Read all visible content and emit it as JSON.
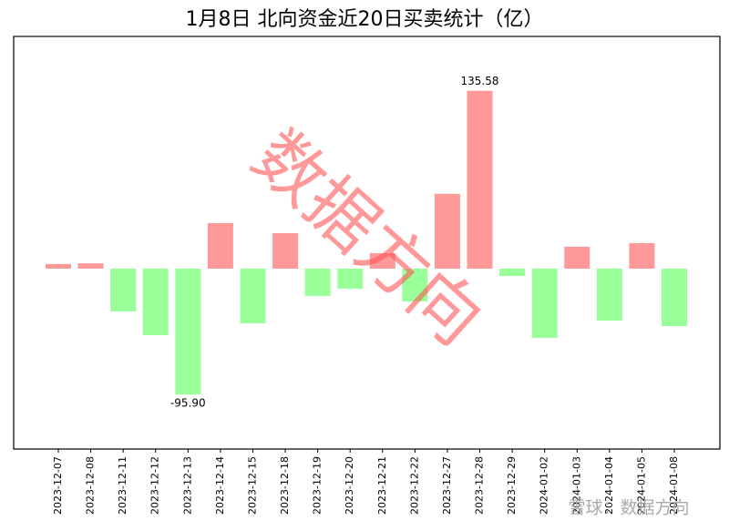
{
  "chart_data": {
    "type": "bar",
    "title": "1月8日 北向资金近20日买卖统计（亿）",
    "categories": [
      "2023-12-07",
      "2023-12-08",
      "2023-12-11",
      "2023-12-12",
      "2023-12-13",
      "2023-12-14",
      "2023-12-15",
      "2023-12-18",
      "2023-12-19",
      "2023-12-20",
      "2023-12-21",
      "2023-12-22",
      "2023-12-27",
      "2023-12-28",
      "2023-12-29",
      "2024-01-02",
      "2024-01-03",
      "2024-01-04",
      "2024-01-05",
      "2024-01-08"
    ],
    "values": [
      3.5,
      4,
      -32.6,
      -50.7,
      -95.9,
      34.7,
      -41.7,
      27,
      -20.8,
      -15.3,
      11.8,
      -25,
      57,
      135.58,
      -5.6,
      -52.8,
      16.7,
      -39.6,
      19.4,
      -43.8
    ],
    "value_labels": [
      null,
      null,
      null,
      null,
      "-95.90",
      null,
      null,
      null,
      null,
      null,
      null,
      null,
      null,
      "135.58",
      null,
      null,
      null,
      null,
      null,
      null
    ],
    "color_positive": "#ff9999",
    "color_negative": "#99ff99",
    "ylim": [
      -137.5,
      177
    ],
    "watermark": "数据方向",
    "footer_watermark": "雪球：数据方向"
  }
}
